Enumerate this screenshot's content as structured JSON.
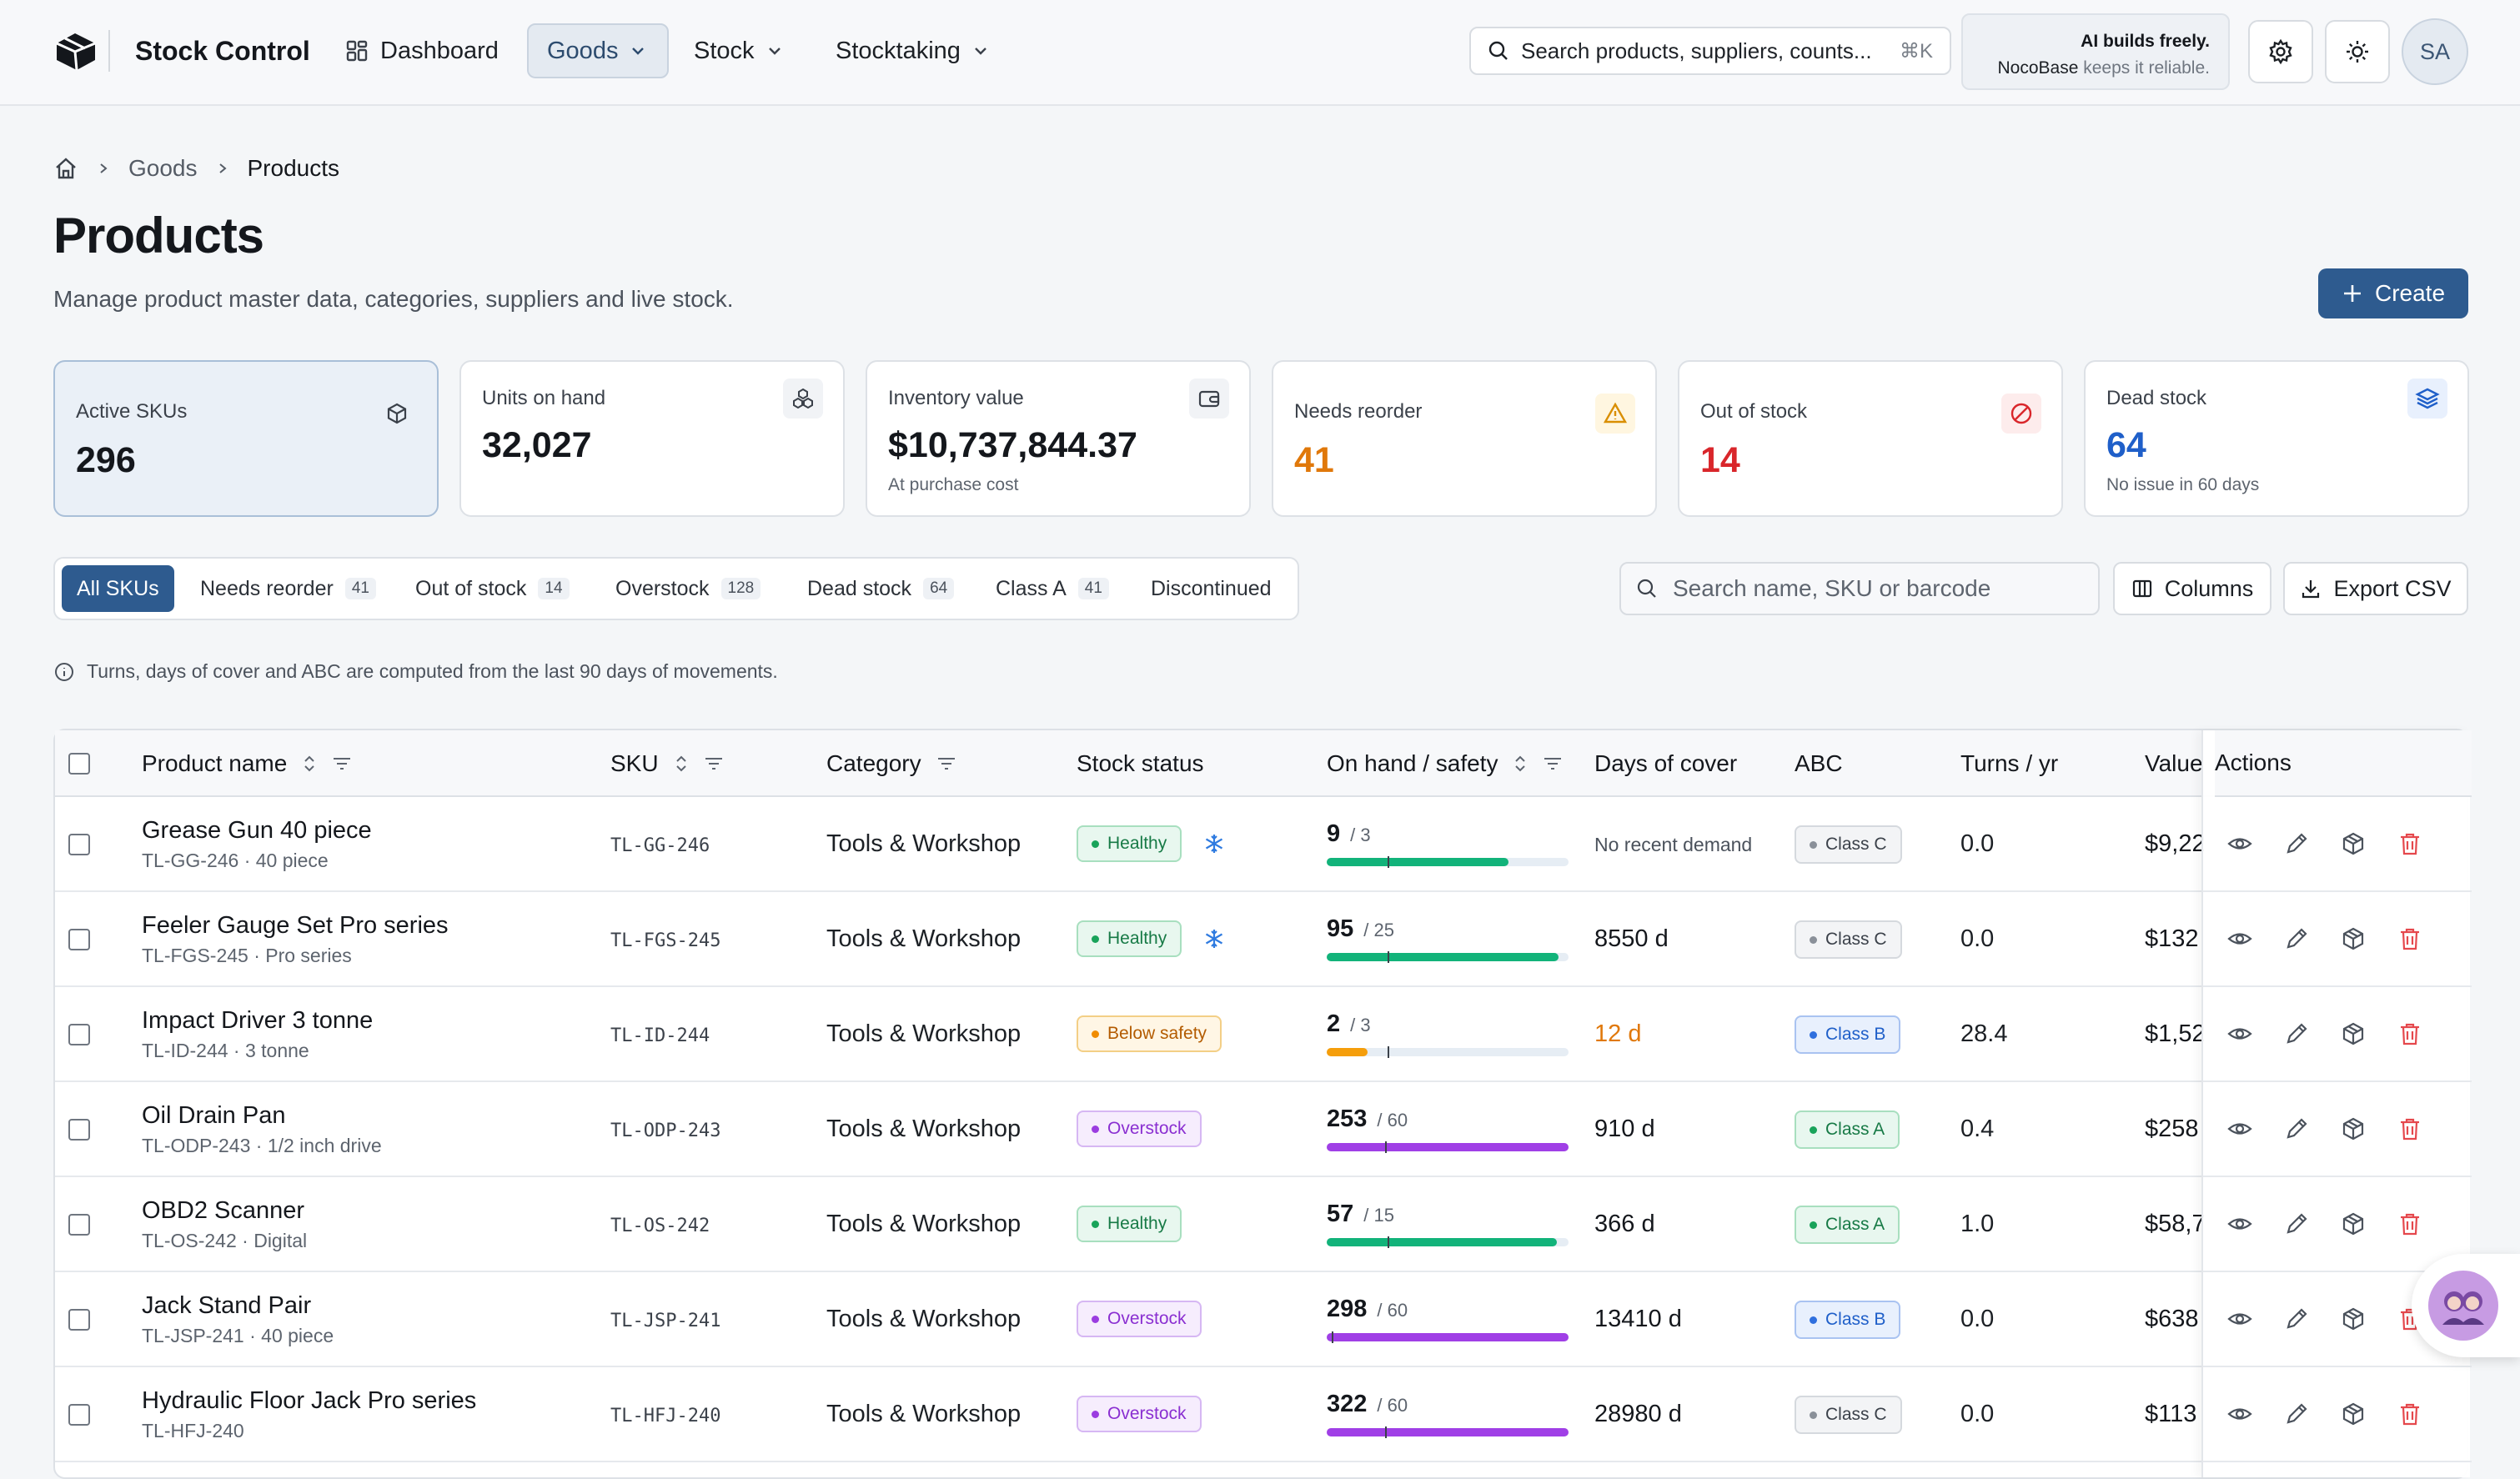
{
  "app": {
    "title": "Stock Control"
  },
  "nav": {
    "dashboard": "Dashboard",
    "goods": "Goods",
    "stock": "Stock",
    "stocktaking": "Stocktaking"
  },
  "global_search": {
    "placeholder": "Search products, suppliers, counts...",
    "shortcut": "⌘K"
  },
  "promo": {
    "line1": "AI builds freely.",
    "brand": "NocoBase",
    "line2_rest": " keeps it reliable."
  },
  "user": {
    "initials": "SA"
  },
  "breadcrumb": {
    "items": [
      "Goods",
      "Products"
    ]
  },
  "page": {
    "title": "Products",
    "subtitle": "Manage product master data, categories, suppliers and live stock.",
    "create_label": "Create"
  },
  "stats": [
    {
      "label": "Active SKUs",
      "value": "296",
      "sub": "",
      "icon": "package-icon"
    },
    {
      "label": "Units on hand",
      "value": "32,027",
      "sub": "",
      "icon": "boxes-icon"
    },
    {
      "label": "Inventory value",
      "value": "$10,737,844.37",
      "sub": "At purchase cost",
      "icon": "wallet-icon"
    },
    {
      "label": "Needs reorder",
      "value": "41",
      "sub": "",
      "icon": "warning-icon",
      "color": "#e0780a"
    },
    {
      "label": "Out of stock",
      "value": "14",
      "sub": "",
      "icon": "ban-icon",
      "color": "#d9262b"
    },
    {
      "label": "Dead stock",
      "value": "64",
      "sub": "No issue in 60 days",
      "icon": "layers-icon",
      "color": "#1f5fc9"
    }
  ],
  "filters": [
    {
      "label": "All SKUs",
      "count": ""
    },
    {
      "label": "Needs reorder",
      "count": "41"
    },
    {
      "label": "Out of stock",
      "count": "14"
    },
    {
      "label": "Overstock",
      "count": "128"
    },
    {
      "label": "Dead stock",
      "count": "64"
    },
    {
      "label": "Class A",
      "count": "41"
    },
    {
      "label": "Discontinued",
      "count": ""
    }
  ],
  "table_search": {
    "placeholder": "Search name, SKU or barcode"
  },
  "toolbar": {
    "columns_label": "Columns",
    "export_label": "Export CSV"
  },
  "info_note": "Turns, days of cover and ABC are computed from the last 90 days of movements.",
  "columns": {
    "name": "Product name",
    "sku": "SKU",
    "category": "Category",
    "status": "Stock status",
    "on_hand": "On hand / safety",
    "days": "Days of cover",
    "abc": "ABC",
    "turns": "Turns / yr",
    "value": "Value",
    "actions": "Actions"
  },
  "rows": [
    {
      "name": "Grease Gun 40 piece",
      "sub": "TL-GG-246 · 40 piece",
      "sku": "TL-GG-246",
      "category": "Tools & Workshop",
      "status": "Healthy",
      "status_kind": "healthy",
      "frozen": true,
      "on_hand": "9",
      "safety": "/ 3",
      "fill": 0.75,
      "safety_frac": 0.25,
      "days": "No recent demand",
      "days_kind": "muted",
      "abc": "Class C",
      "abc_kind": "c",
      "turns": "0.0",
      "value": "$9,22"
    },
    {
      "name": "Feeler Gauge Set Pro series",
      "sub": "TL-FGS-245 · Pro series",
      "sku": "TL-FGS-245",
      "category": "Tools & Workshop",
      "status": "Healthy",
      "status_kind": "healthy",
      "frozen": true,
      "on_hand": "95",
      "safety": "/ 25",
      "fill": 0.96,
      "safety_frac": 0.25,
      "days": "8550 d",
      "days_kind": "normal",
      "abc": "Class C",
      "abc_kind": "c",
      "turns": "0.0",
      "value": "$132"
    },
    {
      "name": "Impact Driver 3 tonne",
      "sub": "TL-ID-244 · 3 tonne",
      "sku": "TL-ID-244",
      "category": "Tools & Workshop",
      "status": "Below safety",
      "status_kind": "below",
      "frozen": false,
      "on_hand": "2",
      "safety": "/ 3",
      "fill": 0.17,
      "safety_frac": 0.25,
      "days": "12 d",
      "days_kind": "warn",
      "abc": "Class B",
      "abc_kind": "b",
      "turns": "28.4",
      "value": "$1,52"
    },
    {
      "name": "Oil Drain Pan",
      "sub": "TL-ODP-243 · 1/2 inch drive",
      "sku": "TL-ODP-243",
      "category": "Tools & Workshop",
      "status": "Overstock",
      "status_kind": "over",
      "frozen": false,
      "on_hand": "253",
      "safety": "/ 60",
      "fill": 1.0,
      "safety_frac": 0.24,
      "days": "910 d",
      "days_kind": "normal",
      "abc": "Class A",
      "abc_kind": "a",
      "turns": "0.4",
      "value": "$258"
    },
    {
      "name": "OBD2 Scanner",
      "sub": "TL-OS-242 · Digital",
      "sku": "TL-OS-242",
      "category": "Tools & Workshop",
      "status": "Healthy",
      "status_kind": "healthy",
      "frozen": false,
      "on_hand": "57",
      "safety": "/ 15",
      "fill": 0.95,
      "safety_frac": 0.25,
      "days": "366 d",
      "days_kind": "normal",
      "abc": "Class A",
      "abc_kind": "a",
      "turns": "1.0",
      "value": "$58,7"
    },
    {
      "name": "Jack Stand Pair",
      "sub": "TL-JSP-241 · 40 piece",
      "sku": "TL-JSP-241",
      "category": "Tools & Workshop",
      "status": "Overstock",
      "status_kind": "over",
      "frozen": false,
      "on_hand": "298",
      "safety": "/ 60",
      "fill": 1.0,
      "safety_frac": 0.02,
      "days": "13410 d",
      "days_kind": "normal",
      "abc": "Class B",
      "abc_kind": "b",
      "turns": "0.0",
      "value": "$638"
    },
    {
      "name": "Hydraulic Floor Jack Pro series",
      "sub": "TL-HFJ-240",
      "sku": "TL-HFJ-240",
      "category": "Tools & Workshop",
      "status": "Overstock",
      "status_kind": "over",
      "frozen": false,
      "on_hand": "322",
      "safety": "/ 60",
      "fill": 1.0,
      "safety_frac": 0.24,
      "days": "28980 d",
      "days_kind": "normal",
      "abc": "Class C",
      "abc_kind": "c",
      "turns": "0.0",
      "value": "$113"
    }
  ],
  "colors": {
    "accent": "#2e5b8f",
    "healthy_bar": "#12b37a",
    "below_bar": "#f59e0b",
    "over_bar": "#a03fe6",
    "frozen_icon": "#2f7be0",
    "delete_icon": "#e5484d"
  }
}
